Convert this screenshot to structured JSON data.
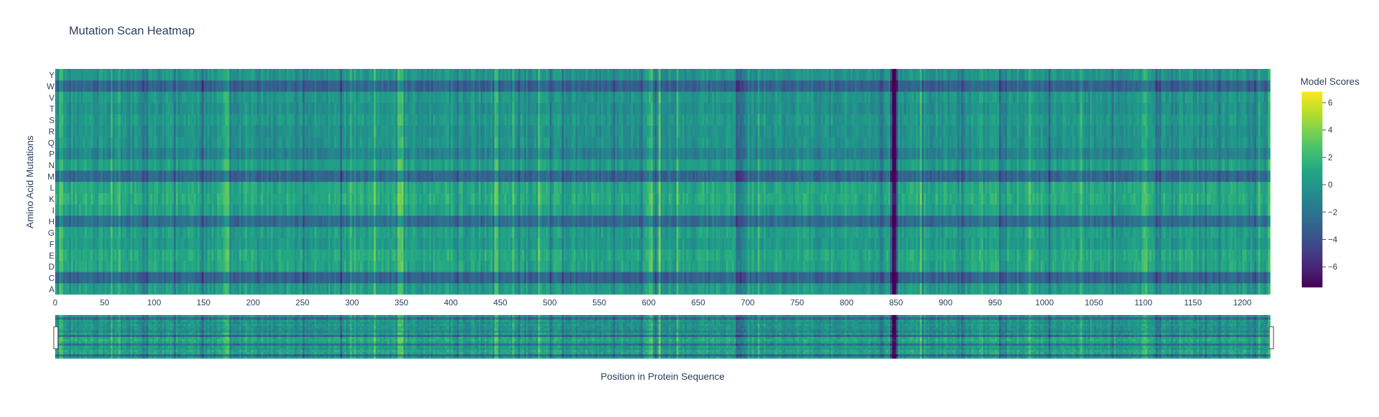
{
  "chart_data": {
    "type": "heatmap",
    "title": "Mutation Scan Heatmap",
    "xlabel": "Position in Protein Sequence",
    "ylabel": "Amino Acid Mutations",
    "x_range": [
      0,
      1228
    ],
    "x_ticks": [
      0,
      50,
      100,
      150,
      200,
      250,
      300,
      350,
      400,
      450,
      500,
      550,
      600,
      650,
      700,
      750,
      800,
      850,
      900,
      950,
      1000,
      1050,
      1100,
      1150,
      1200
    ],
    "y_categories": [
      "A",
      "C",
      "D",
      "E",
      "F",
      "G",
      "H",
      "I",
      "K",
      "L",
      "M",
      "N",
      "P",
      "Q",
      "R",
      "S",
      "T",
      "V",
      "W",
      "Y"
    ],
    "row_baseline": {
      "A": 0.3,
      "C": -3.0,
      "D": 0.8,
      "E": 1.0,
      "F": 0.2,
      "G": 0.5,
      "H": -2.4,
      "I": 0.6,
      "K": 1.2,
      "L": 1.0,
      "M": -2.8,
      "N": 0.4,
      "P": -1.2,
      "Q": -0.2,
      "R": -0.3,
      "S": 0.1,
      "T": -0.4,
      "V": 0.0,
      "W": -3.0,
      "Y": -0.1
    },
    "column_dips": [
      {
        "x": 90,
        "delta": -1.2
      },
      {
        "x": 205,
        "delta": -1.0
      },
      {
        "x": 405,
        "delta": -1.0
      },
      {
        "x": 690,
        "delta": -1.8
      },
      {
        "x": 695,
        "delta": -1.5
      },
      {
        "x": 835,
        "delta": -1.5
      },
      {
        "x": 846,
        "delta": -3.5
      },
      {
        "x": 848,
        "delta": -3.5
      },
      {
        "x": 955,
        "delta": -1.6
      },
      {
        "x": 1115,
        "delta": -1.2
      }
    ],
    "column_peaks": [
      {
        "x": 5,
        "delta": 2.0
      },
      {
        "x": 172,
        "delta": 2.2
      },
      {
        "x": 348,
        "delta": 2.4
      },
      {
        "x": 445,
        "delta": 1.8
      },
      {
        "x": 600,
        "delta": 1.8
      },
      {
        "x": 935,
        "delta": 1.8
      },
      {
        "x": 1100,
        "delta": 1.8
      }
    ],
    "colorscale": "viridis",
    "colorbar": {
      "title": "Model Scores",
      "range": [
        -7.5,
        6.8
      ],
      "ticks": [
        6,
        4,
        2,
        0,
        -2,
        -4,
        -6
      ],
      "tick_labels": [
        "6",
        "4",
        "2",
        "0",
        "−2",
        "−4",
        "−6"
      ]
    },
    "rangeslider": true
  }
}
